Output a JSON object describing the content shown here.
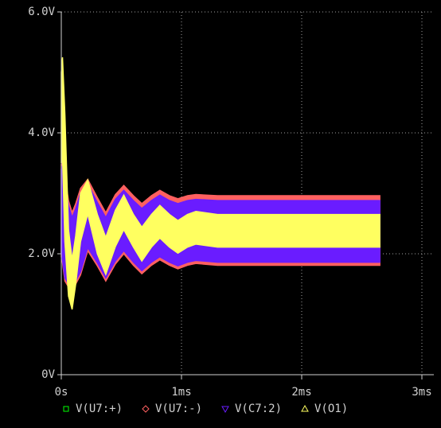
{
  "chart_data": {
    "type": "band",
    "x": [
      0,
      0.01,
      0.03,
      0.06,
      0.09,
      0.12,
      0.16,
      0.22,
      0.3,
      0.37,
      0.45,
      0.52,
      0.6,
      0.67,
      0.75,
      0.82,
      0.9,
      0.97,
      1.05,
      1.12,
      1.3,
      2.65
    ],
    "xlim": [
      0,
      3
    ],
    "xticks": [
      {
        "value": 0,
        "label": "0s"
      },
      {
        "value": 1,
        "label": "1ms"
      },
      {
        "value": 2,
        "label": "2ms"
      },
      {
        "value": 3,
        "label": "3ms"
      }
    ],
    "ylim": [
      0,
      6
    ],
    "yticks": [
      {
        "value": 0,
        "label": "0V"
      },
      {
        "value": 2,
        "label": "2.0V"
      },
      {
        "value": 4,
        "label": "4.0V"
      },
      {
        "value": 6,
        "label": "6.0V"
      }
    ],
    "grid": true,
    "series": [
      {
        "name": "V(U7:+)",
        "color": "#00ff00",
        "marker": "square",
        "high": [
          3.4,
          3.45,
          3.2,
          2.8,
          2.6,
          2.75,
          3.0,
          3.15,
          2.85,
          2.6,
          2.9,
          3.05,
          2.88,
          2.75,
          2.88,
          2.97,
          2.88,
          2.83,
          2.88,
          2.9,
          2.88,
          2.88
        ],
        "low": [
          2.0,
          1.9,
          1.6,
          1.5,
          1.5,
          1.55,
          1.7,
          2.1,
          1.85,
          1.6,
          1.88,
          2.05,
          1.86,
          1.72,
          1.86,
          1.95,
          1.86,
          1.8,
          1.86,
          1.89,
          1.86,
          1.86
        ]
      },
      {
        "name": "V(U7:-)",
        "color": "#ff6060",
        "marker": "diamond",
        "high": [
          3.48,
          3.55,
          3.28,
          2.88,
          2.68,
          2.83,
          3.08,
          3.23,
          2.93,
          2.68,
          2.98,
          3.13,
          2.96,
          2.83,
          2.96,
          3.05,
          2.96,
          2.91,
          2.96,
          2.98,
          2.96,
          2.96
        ],
        "low": [
          1.95,
          1.85,
          1.55,
          1.45,
          1.45,
          1.5,
          1.65,
          2.05,
          1.8,
          1.55,
          1.83,
          2.0,
          1.81,
          1.67,
          1.81,
          1.9,
          1.81,
          1.75,
          1.81,
          1.84,
          1.81,
          1.81
        ]
      },
      {
        "name": "V(C7:2)",
        "color": "#6a1cff",
        "marker": "triangle-down",
        "high": [
          3.4,
          3.45,
          3.2,
          2.8,
          2.6,
          2.75,
          3.0,
          3.15,
          2.85,
          2.6,
          2.9,
          3.05,
          2.88,
          2.75,
          2.88,
          2.97,
          2.88,
          2.83,
          2.88,
          2.9,
          2.88,
          2.88
        ],
        "low": [
          2.0,
          1.9,
          1.6,
          1.5,
          1.5,
          1.55,
          1.7,
          2.1,
          1.85,
          1.6,
          1.88,
          2.05,
          1.86,
          1.72,
          1.86,
          1.95,
          1.86,
          1.8,
          1.86,
          1.89,
          1.86,
          1.86
        ]
      },
      {
        "name": "V(O1)",
        "color": "#ffff60",
        "marker": "triangle-up",
        "high": [
          5.0,
          5.25,
          4.3,
          2.4,
          1.9,
          2.3,
          3.0,
          3.22,
          2.65,
          2.27,
          2.72,
          2.97,
          2.65,
          2.44,
          2.65,
          2.8,
          2.65,
          2.55,
          2.65,
          2.7,
          2.65,
          2.65
        ],
        "low": [
          3.5,
          3.6,
          2.2,
          1.3,
          1.08,
          1.5,
          2.2,
          2.66,
          2.0,
          1.66,
          2.12,
          2.4,
          2.11,
          1.88,
          2.11,
          2.26,
          2.11,
          2.01,
          2.11,
          2.16,
          2.11,
          2.11
        ]
      }
    ]
  }
}
